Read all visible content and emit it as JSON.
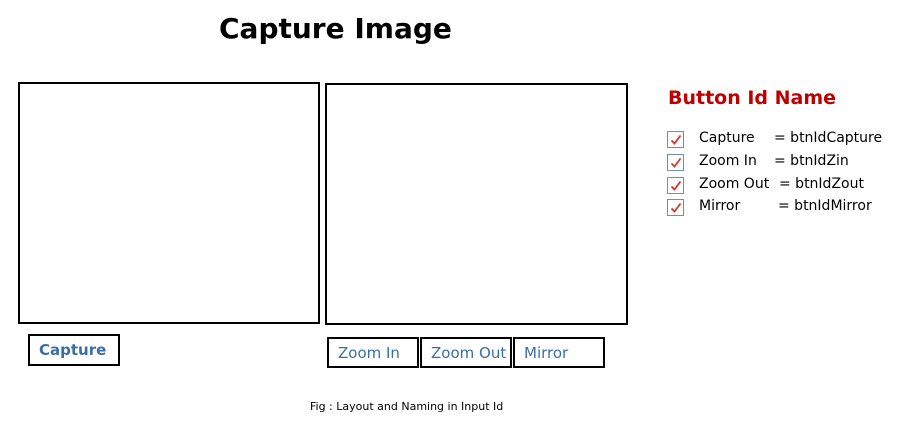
{
  "title": "Capture Image",
  "buttons": {
    "capture": "Capture",
    "zoom_in": "Zoom In",
    "zoom_out": "Zoom Out",
    "mirror": "Mirror"
  },
  "legend": {
    "title": "Button Id Name",
    "items": [
      {
        "name": "Capture",
        "id_text": "= btnIdCapture",
        "checked": true
      },
      {
        "name": "Zoom In",
        "id_text": "= btnIdZin",
        "checked": true
      },
      {
        "name": "Zoom Out",
        "id_text": "= btnIdZout",
        "checked": true
      },
      {
        "name": "Mirror",
        "id_text": "= btnIdMirror",
        "checked": true
      }
    ]
  },
  "caption": "Fig : Layout and Naming in Input Id",
  "colors": {
    "legend_title": "#c00000",
    "button_text": "#3a6fa5",
    "checkmark": "#d9342b",
    "checkbox_border": "#6d8fb5"
  }
}
